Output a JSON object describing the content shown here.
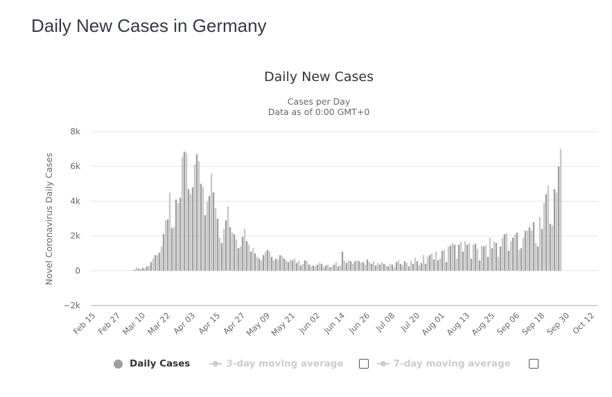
{
  "page": {
    "title": "Daily New Cases in Germany"
  },
  "chart_data": {
    "type": "bar",
    "title": "Daily New Cases",
    "subtitle": [
      "Cases per Day",
      "Data as of 0:00 GMT+0"
    ],
    "xlabel": "",
    "ylabel": "Novel Coronavirus Daily Cases",
    "ylim": [
      -2000,
      8000
    ],
    "yticks": [
      -2000,
      0,
      2000,
      4000,
      6000,
      8000
    ],
    "ytick_labels": [
      "−2k",
      "0",
      "2k",
      "4k",
      "6k",
      "8k"
    ],
    "x_start": "Feb 15",
    "xtick_labels": [
      "Feb 15",
      "Feb 27",
      "Mar 10",
      "Mar 22",
      "Apr 03",
      "Apr 15",
      "Apr 27",
      "May 09",
      "May 21",
      "Jun 02",
      "Jun 14",
      "Jun 26",
      "Jul 08",
      "Jul 20",
      "Aug 01",
      "Aug 13",
      "Aug 25",
      "Sep 06",
      "Sep 18",
      "Sep 30",
      "Oct 12"
    ],
    "xtick_interval_days": 12,
    "grid": true,
    "legend_position": "bottom",
    "series": [
      {
        "name": "Daily Cases",
        "color": "#9e9e9e",
        "values": [
          0,
          0,
          0,
          0,
          0,
          0,
          0,
          0,
          0,
          0,
          0,
          0,
          0,
          0,
          0,
          0,
          0,
          0,
          0,
          20,
          60,
          200,
          120,
          100,
          170,
          140,
          250,
          290,
          500,
          700,
          900,
          900,
          1050,
          1400,
          2100,
          2900,
          2950,
          4500,
          2450,
          2500,
          4100,
          3900,
          4200,
          6550,
          6850,
          6800,
          4700,
          4400,
          4800,
          6100,
          6700,
          6300,
          5000,
          4800,
          3200,
          4000,
          4300,
          5600,
          4500,
          3600,
          3000,
          1900,
          1600,
          2400,
          2900,
          3700,
          2500,
          2200,
          2100,
          1800,
          1300,
          1400,
          1950,
          2400,
          1700,
          1500,
          1100,
          1300,
          1000,
          800,
          700,
          600,
          900,
          1100,
          1200,
          1100,
          800,
          600,
          700,
          650,
          900,
          850,
          700,
          600,
          500,
          650,
          600,
          700,
          450,
          600,
          300,
          400,
          600,
          550,
          350,
          250,
          300,
          250,
          350,
          450,
          400,
          200,
          300,
          350,
          200,
          250,
          350,
          500,
          250,
          300,
          1100,
          600,
          450,
          600,
          550,
          400,
          550,
          600,
          550,
          450,
          500,
          350,
          650,
          500,
          400,
          550,
          300,
          450,
          350,
          500,
          400,
          300,
          250,
          400,
          350,
          200,
          500,
          600,
          400,
          300,
          550,
          450,
          250,
          600,
          400,
          750,
          550,
          300,
          450,
          900,
          400,
          800,
          900,
          1000,
          650,
          1100,
          600,
          700,
          1150,
          1200,
          500,
          1400,
          1450,
          1600,
          1500,
          700,
          1500,
          1650,
          1100,
          1700,
          1500,
          1600,
          700,
          1500,
          1550,
          1250,
          600,
          1450,
          1400,
          1500,
          800,
          1900,
          1300,
          1700,
          1600,
          800,
          1400,
          1900,
          2100,
          2150,
          1150,
          1700,
          1900,
          2100,
          2200,
          1200,
          1300,
          1900,
          2300,
          2300,
          2500,
          2300,
          2800,
          1600,
          1400,
          3100,
          2400,
          3900,
          4400,
          4900,
          2700,
          2600,
          4700,
          4500,
          6000,
          7000
        ]
      }
    ]
  },
  "legend": {
    "items": [
      {
        "label": "Daily Cases",
        "active": true
      },
      {
        "label": "3-day moving average",
        "active": false
      },
      {
        "label": "7-day moving average",
        "active": false
      }
    ]
  },
  "colors": {
    "bar_dark": "#9e9e9e",
    "bar_light": "#c8c8c8",
    "grid": "#e6e6e6",
    "axis": "#ccd6eb"
  }
}
